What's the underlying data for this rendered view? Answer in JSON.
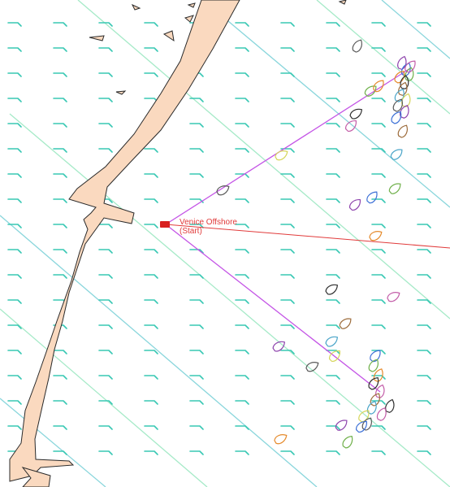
{
  "map": {
    "start_label_line1": "Venice Offshore",
    "start_label_line2": "(Start)",
    "colors": {
      "land_fill": "#fad9bf",
      "land_stroke": "#2a2a2a",
      "wind_arrow": "#39c8b4",
      "isoline": "#a6eac8",
      "isoline_blue": "#8ad6dc",
      "layline": "#c455e6",
      "course_line": "#e13b3b",
      "start_marker": "#d82020"
    },
    "icons": [
      "wind-arrow-icon",
      "boat-icon",
      "start-flag-icon"
    ]
  }
}
